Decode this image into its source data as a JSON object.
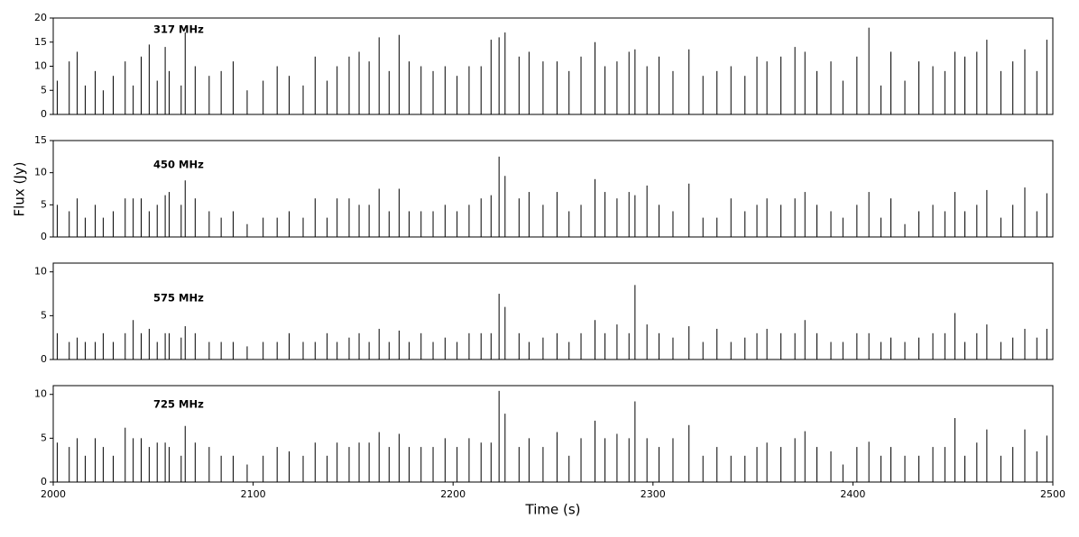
{
  "chart_data": [
    {
      "type": "stem",
      "annotation": "317 MHz",
      "ylabel": "Flux (Jy)",
      "color": "#000000",
      "xlim": [
        2000,
        2500
      ],
      "ylim": [
        0,
        20
      ],
      "yticks": [
        0,
        5,
        10,
        15,
        20
      ],
      "x": [
        2002,
        2008,
        2012,
        2016,
        2021,
        2025,
        2030,
        2036,
        2040,
        2044,
        2048,
        2052,
        2056,
        2058,
        2064,
        2066,
        2071,
        2078,
        2084,
        2090,
        2097,
        2105,
        2112,
        2118,
        2125,
        2131,
        2137,
        2142,
        2148,
        2153,
        2158,
        2163,
        2168,
        2173,
        2178,
        2184,
        2190,
        2196,
        2202,
        2208,
        2214,
        2219,
        2223,
        2226,
        2233,
        2238,
        2245,
        2252,
        2258,
        2264,
        2271,
        2276,
        2282,
        2288,
        2291,
        2297,
        2303,
        2310,
        2318,
        2325,
        2332,
        2339,
        2346,
        2352,
        2357,
        2364,
        2371,
        2376,
        2382,
        2389,
        2395,
        2402,
        2408,
        2414,
        2419,
        2426,
        2433,
        2440,
        2446,
        2451,
        2456,
        2462,
        2467,
        2474,
        2480,
        2486,
        2492,
        2497
      ],
      "values": [
        7,
        11,
        13,
        6,
        9,
        5,
        8,
        11,
        6,
        12,
        14.5,
        7,
        14,
        9,
        6,
        17,
        10,
        8,
        9,
        11,
        5,
        7,
        10,
        8,
        6,
        12,
        7,
        10,
        12,
        13,
        11,
        16,
        9,
        16.5,
        11,
        10,
        9,
        10,
        8,
        10,
        10,
        15.5,
        16,
        17,
        12,
        13,
        11,
        11,
        9,
        12,
        15,
        10,
        11,
        13,
        13.5,
        10,
        12,
        9,
        13.5,
        8,
        9,
        10,
        8,
        12,
        11,
        12,
        14,
        13,
        9,
        11,
        7,
        12,
        18,
        6,
        13,
        7,
        11,
        10,
        9,
        13,
        12,
        13,
        15.5,
        9,
        11,
        13.5,
        9,
        15.5
      ]
    },
    {
      "type": "stem",
      "annotation": "450 MHz",
      "color": "#000000",
      "xlim": [
        2000,
        2500
      ],
      "ylim": [
        0,
        15
      ],
      "yticks": [
        0,
        5,
        10,
        15
      ],
      "x": [
        2002,
        2008,
        2012,
        2016,
        2021,
        2025,
        2030,
        2036,
        2040,
        2044,
        2048,
        2052,
        2056,
        2058,
        2064,
        2066,
        2071,
        2078,
        2084,
        2090,
        2097,
        2105,
        2112,
        2118,
        2125,
        2131,
        2137,
        2142,
        2148,
        2153,
        2158,
        2163,
        2168,
        2173,
        2178,
        2184,
        2190,
        2196,
        2202,
        2208,
        2214,
        2219,
        2223,
        2226,
        2233,
        2238,
        2245,
        2252,
        2258,
        2264,
        2271,
        2276,
        2282,
        2288,
        2291,
        2297,
        2303,
        2310,
        2318,
        2325,
        2332,
        2339,
        2346,
        2352,
        2357,
        2364,
        2371,
        2376,
        2382,
        2389,
        2395,
        2402,
        2408,
        2414,
        2419,
        2426,
        2433,
        2440,
        2446,
        2451,
        2456,
        2462,
        2467,
        2474,
        2480,
        2486,
        2492,
        2497
      ],
      "values": [
        5,
        4,
        6,
        3,
        5,
        3,
        4,
        6,
        6,
        6,
        4,
        5,
        6.5,
        7,
        5,
        8.8,
        6,
        4,
        3,
        4,
        2,
        3,
        3,
        4,
        3,
        6,
        3,
        6,
        6,
        5,
        5,
        7.5,
        4,
        7.5,
        4,
        4,
        4,
        5,
        4,
        5,
        6,
        6.5,
        12.5,
        9.5,
        6,
        7,
        5,
        7,
        4,
        5,
        9,
        7,
        6,
        7,
        6.5,
        8,
        5,
        4,
        8.3,
        3,
        3,
        6,
        4,
        5,
        6,
        5,
        6,
        7,
        5,
        4,
        3,
        5,
        7,
        3,
        6,
        2,
        4,
        5,
        4,
        7,
        4,
        5,
        7.3,
        3,
        5,
        7.7,
        4,
        6.8
      ]
    },
    {
      "type": "stem",
      "annotation": "575 MHz",
      "color": "#000000",
      "xlim": [
        2000,
        2500
      ],
      "ylim": [
        0,
        11
      ],
      "yticks": [
        0,
        5,
        10
      ],
      "x": [
        2002,
        2008,
        2012,
        2016,
        2021,
        2025,
        2030,
        2036,
        2040,
        2044,
        2048,
        2052,
        2056,
        2058,
        2064,
        2066,
        2071,
        2078,
        2084,
        2090,
        2097,
        2105,
        2112,
        2118,
        2125,
        2131,
        2137,
        2142,
        2148,
        2153,
        2158,
        2163,
        2168,
        2173,
        2178,
        2184,
        2190,
        2196,
        2202,
        2208,
        2214,
        2219,
        2223,
        2226,
        2233,
        2238,
        2245,
        2252,
        2258,
        2264,
        2271,
        2276,
        2282,
        2288,
        2291,
        2297,
        2303,
        2310,
        2318,
        2325,
        2332,
        2339,
        2346,
        2352,
        2357,
        2364,
        2371,
        2376,
        2382,
        2389,
        2395,
        2402,
        2408,
        2414,
        2419,
        2426,
        2433,
        2440,
        2446,
        2451,
        2456,
        2462,
        2467,
        2474,
        2480,
        2486,
        2492,
        2497
      ],
      "values": [
        3,
        2,
        2.5,
        2,
        2,
        3,
        2,
        3,
        4.5,
        3,
        3.5,
        2,
        3,
        3,
        2.5,
        3.8,
        3,
        2,
        2,
        2,
        1.5,
        2,
        2,
        3,
        2,
        2,
        3,
        2,
        2.5,
        3,
        2,
        3.5,
        2,
        3.3,
        2,
        3,
        2,
        2.5,
        2,
        3,
        3,
        3,
        7.5,
        6,
        3,
        2,
        2.5,
        3,
        2,
        3,
        4.5,
        3,
        4,
        3,
        8.5,
        4,
        3,
        2.5,
        3.8,
        2,
        3.5,
        2,
        2.5,
        3,
        3.5,
        3,
        3,
        4.5,
        3,
        2,
        2,
        3,
        3,
        2,
        2.5,
        2,
        2.5,
        3,
        3,
        5.3,
        2,
        3,
        4,
        2,
        2.5,
        3.5,
        2.5,
        3.5
      ]
    },
    {
      "type": "stem",
      "annotation": "725 MHz",
      "xlabel": "Time (s)",
      "color": "#000000",
      "xlim": [
        2000,
        2500
      ],
      "xticks": [
        2000,
        2100,
        2200,
        2300,
        2400,
        2500
      ],
      "ylim": [
        0,
        11
      ],
      "yticks": [
        0,
        5,
        10
      ],
      "x": [
        2002,
        2008,
        2012,
        2016,
        2021,
        2025,
        2030,
        2036,
        2040,
        2044,
        2048,
        2052,
        2056,
        2058,
        2064,
        2066,
        2071,
        2078,
        2084,
        2090,
        2097,
        2105,
        2112,
        2118,
        2125,
        2131,
        2137,
        2142,
        2148,
        2153,
        2158,
        2163,
        2168,
        2173,
        2178,
        2184,
        2190,
        2196,
        2202,
        2208,
        2214,
        2219,
        2223,
        2226,
        2233,
        2238,
        2245,
        2252,
        2258,
        2264,
        2271,
        2276,
        2282,
        2288,
        2291,
        2297,
        2303,
        2310,
        2318,
        2325,
        2332,
        2339,
        2346,
        2352,
        2357,
        2364,
        2371,
        2376,
        2382,
        2389,
        2395,
        2402,
        2408,
        2414,
        2419,
        2426,
        2433,
        2440,
        2446,
        2451,
        2456,
        2462,
        2467,
        2474,
        2480,
        2486,
        2492,
        2497
      ],
      "values": [
        4.5,
        4,
        5,
        3,
        5,
        4,
        3,
        6.2,
        5,
        5,
        4,
        4.5,
        4.5,
        4,
        3,
        6.4,
        4.5,
        4,
        3,
        3,
        2,
        3,
        4,
        3.5,
        3,
        4.5,
        3,
        4.5,
        4,
        4.5,
        4.5,
        5.7,
        4,
        5.5,
        4,
        4,
        4,
        5,
        4,
        5,
        4.5,
        4.5,
        10.4,
        7.8,
        4,
        5,
        4,
        5.7,
        3,
        5,
        7,
        5,
        5.5,
        5,
        9.2,
        5,
        4,
        5,
        6.5,
        3,
        4,
        3,
        3,
        4,
        4.5,
        4,
        5,
        5.8,
        4,
        3.5,
        2,
        4,
        4.6,
        3,
        4,
        3,
        3,
        4,
        4,
        7.3,
        3,
        4.5,
        6,
        3,
        4,
        6,
        3.5,
        5.3
      ]
    }
  ]
}
